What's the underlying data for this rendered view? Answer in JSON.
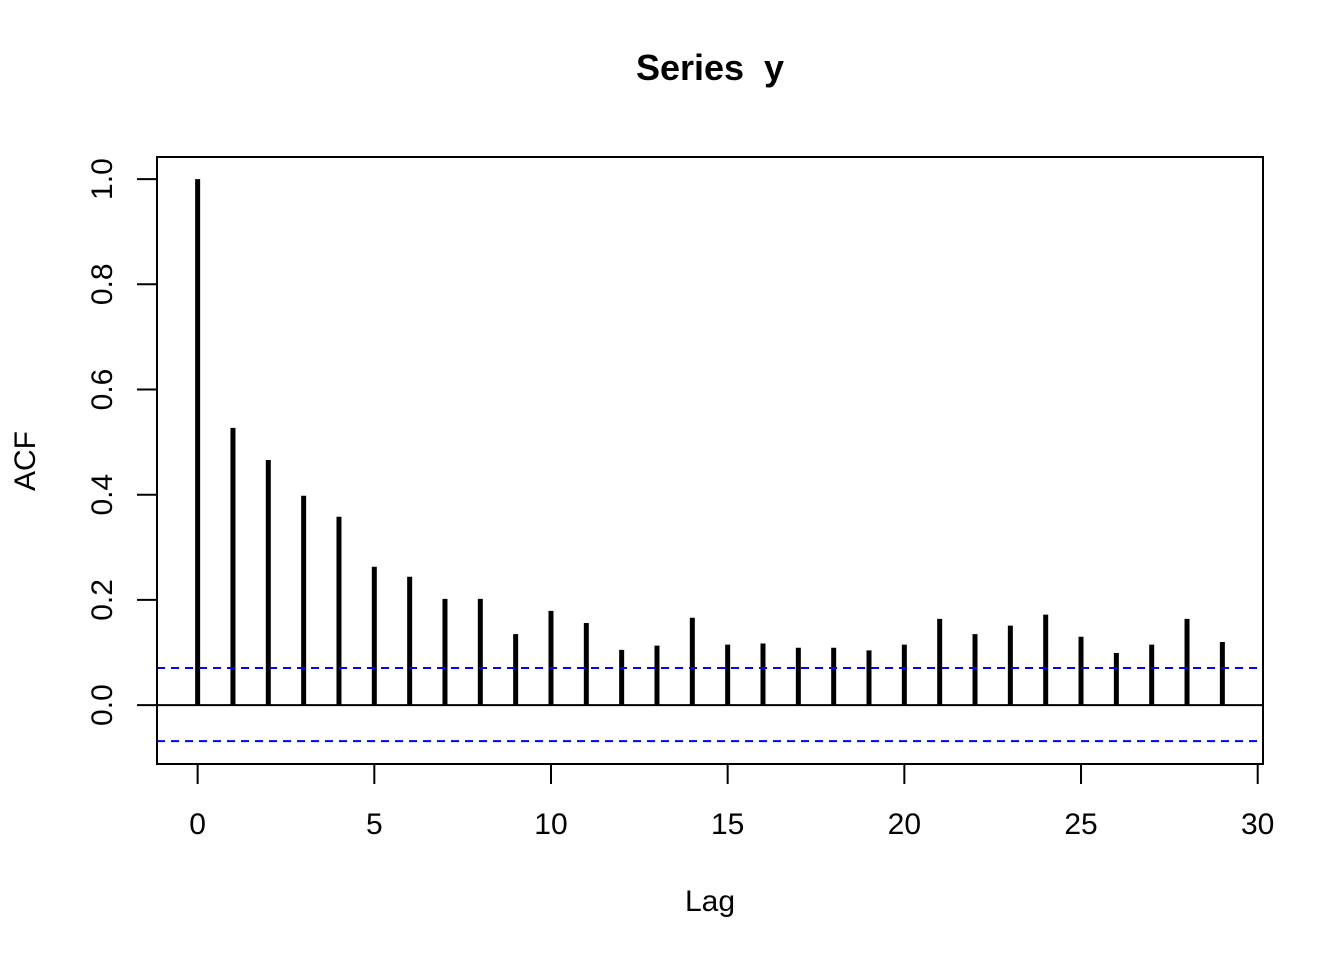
{
  "chart_data": {
    "type": "bar",
    "title": "Series  y",
    "xlabel": "Lag",
    "ylabel": "ACF",
    "xlim": [
      -1.15,
      30.15
    ],
    "ylim": [
      -0.112,
      1.042
    ],
    "x_ticks": [
      0,
      5,
      10,
      15,
      20,
      25,
      30
    ],
    "x_tick_labels": [
      "0",
      "5",
      "10",
      "15",
      "20",
      "25",
      "30"
    ],
    "y_ticks": [
      0.0,
      0.2,
      0.4,
      0.6,
      0.8,
      1.0
    ],
    "y_tick_labels": [
      "0.0",
      "0.2",
      "0.4",
      "0.6",
      "0.8",
      "1.0"
    ],
    "lags": [
      0,
      1,
      2,
      3,
      4,
      5,
      6,
      7,
      8,
      9,
      10,
      11,
      12,
      13,
      14,
      15,
      16,
      17,
      18,
      19,
      20,
      21,
      22,
      23,
      24,
      25,
      26,
      27,
      28,
      29
    ],
    "acf": [
      1.0,
      0.527,
      0.466,
      0.398,
      0.358,
      0.263,
      0.244,
      0.202,
      0.202,
      0.135,
      0.179,
      0.156,
      0.105,
      0.113,
      0.166,
      0.115,
      0.117,
      0.109,
      0.109,
      0.104,
      0.115,
      0.164,
      0.135,
      0.151,
      0.172,
      0.13,
      0.099,
      0.115,
      0.164,
      0.12
    ],
    "confidence_bounds": [
      0.0705,
      -0.0685
    ],
    "colors": {
      "bars": "#000000",
      "confidence": "#0000ff",
      "zero_line": "#000000"
    },
    "grid": false
  }
}
